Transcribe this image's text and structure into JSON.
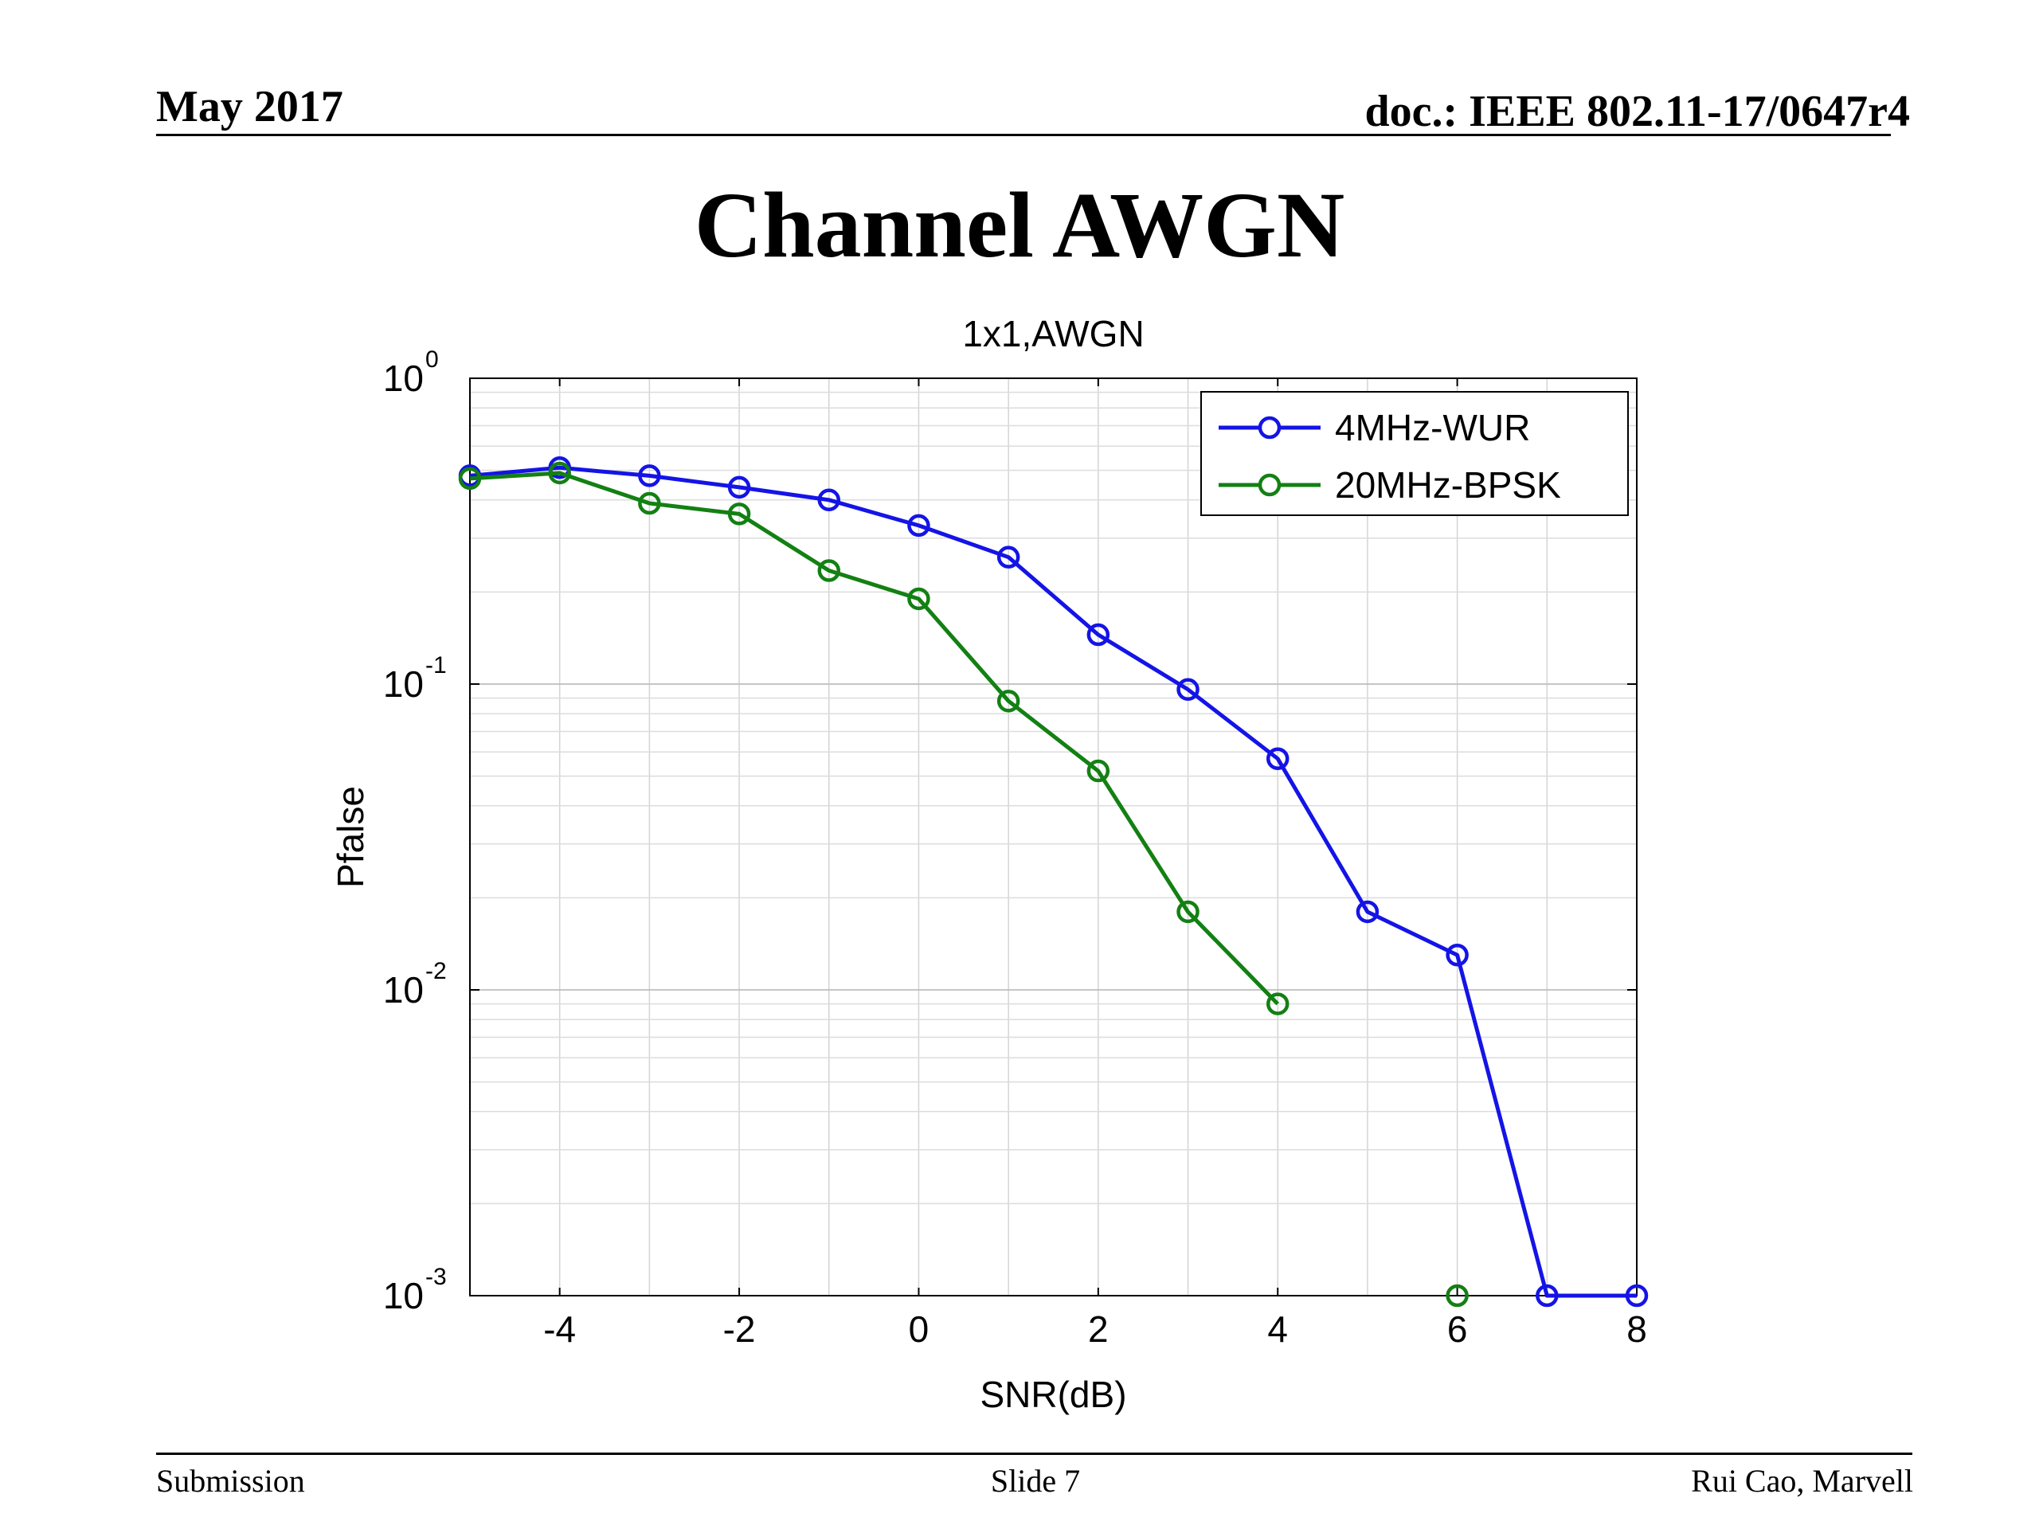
{
  "header": {
    "date": "May 2017",
    "doc_id": "doc.: IEEE 802.11-17/0647r4"
  },
  "slide_title": "Channel AWGN",
  "footer": {
    "left": "Submission",
    "center": "Slide 7",
    "right": "Rui Cao, Marvell"
  },
  "chart_data": {
    "type": "line",
    "title": "1x1,AWGN",
    "xlabel": "SNR(dB)",
    "ylabel": "Pfalse",
    "xlim": [
      -5,
      8
    ],
    "ylim": [
      0.001,
      1
    ],
    "yscale": "log",
    "grid": true,
    "legend_position": "top-right",
    "x_ticks": [
      -4,
      -2,
      0,
      2,
      4,
      6,
      8
    ],
    "y_ticks": [
      {
        "base": "10",
        "exp": "0",
        "value": 1
      },
      {
        "base": "10",
        "exp": "-1",
        "value": 0.1
      },
      {
        "base": "10",
        "exp": "-2",
        "value": 0.01
      },
      {
        "base": "10",
        "exp": "-3",
        "value": 0.001
      }
    ],
    "series": [
      {
        "name": "4MHz-WUR",
        "color": "#1414e6",
        "marker": "circle",
        "x": [
          -5,
          -4,
          -3,
          -2,
          -1,
          0,
          1,
          2,
          3,
          4,
          5,
          6,
          7,
          8
        ],
        "y": [
          0.48,
          0.51,
          0.48,
          0.44,
          0.4,
          0.33,
          0.26,
          0.145,
          0.096,
          0.057,
          0.018,
          0.013,
          0.001,
          0.001
        ]
      },
      {
        "name": "20MHz-BPSK",
        "color": "#138013",
        "marker": "circle",
        "x": [
          -5,
          -4,
          -3,
          -2,
          -1,
          0,
          1,
          2,
          3,
          4,
          6
        ],
        "y": [
          0.47,
          0.49,
          0.39,
          0.36,
          0.235,
          0.19,
          0.088,
          0.052,
          0.018,
          0.009,
          0.001
        ]
      }
    ]
  }
}
